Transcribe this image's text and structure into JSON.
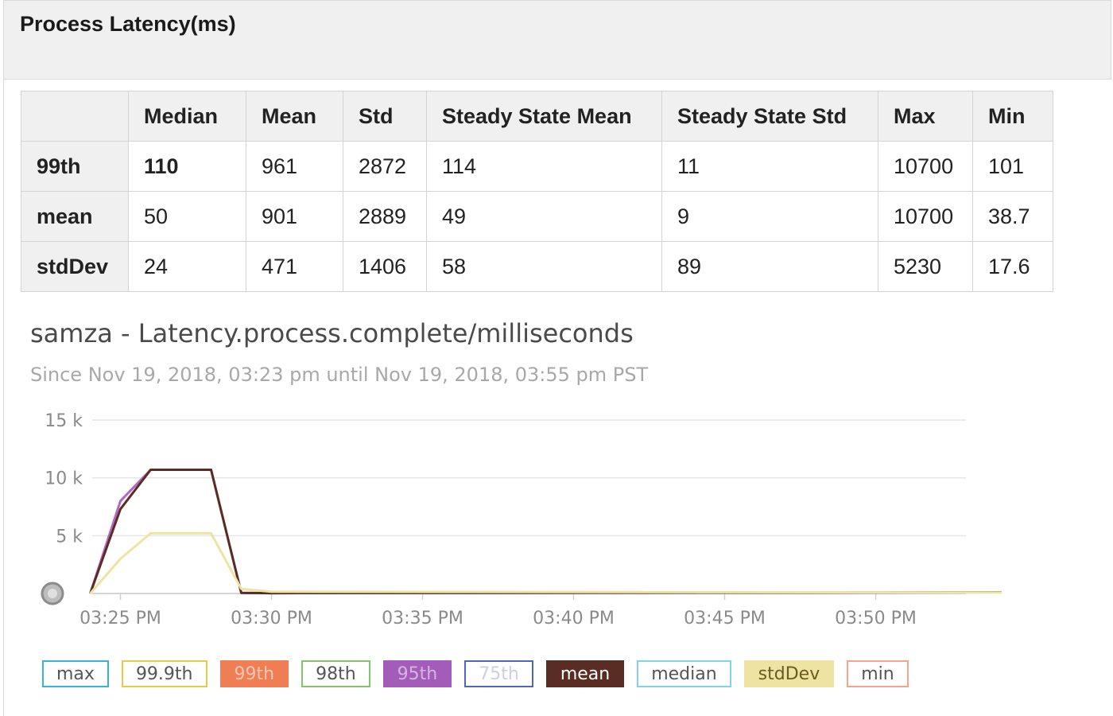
{
  "panel": {
    "title": "Process Latency(ms)"
  },
  "table": {
    "columns": [
      "",
      "Median",
      "Mean",
      "Std",
      "Steady State Mean",
      "Steady State Std",
      "Max",
      "Min"
    ],
    "rows": [
      {
        "label": "99th",
        "values": [
          "110",
          "961",
          "2872",
          "114",
          "11",
          "10700",
          "101"
        ]
      },
      {
        "label": "mean",
        "values": [
          "50",
          "901",
          "2889",
          "49",
          "9",
          "10700",
          "38.7"
        ]
      },
      {
        "label": "stdDev",
        "values": [
          "24",
          "471",
          "1406",
          "58",
          "89",
          "5230",
          "17.6"
        ]
      }
    ]
  },
  "chart": {
    "title": "samza - Latency.process.complete/milliseconds",
    "subtitle": "Since Nov 19, 2018, 03:23 pm until Nov 19, 2018, 03:55 pm PST"
  },
  "chart_data": {
    "type": "line",
    "title": "samza - Latency.process.complete/milliseconds",
    "subtitle": "Since Nov 19, 2018, 03:23 pm until Nov 19, 2018, 03:55 pm PST",
    "xlabel": "",
    "ylabel": "",
    "ylim": [
      0,
      15000
    ],
    "yticks": [
      5000,
      10000,
      15000
    ],
    "ytick_labels": [
      "5 k",
      "10 k",
      "15 k"
    ],
    "xlim": [
      "03:23 PM",
      "03:55 PM"
    ],
    "xtick_labels": [
      "03:25 PM",
      "03:30 PM",
      "03:35 PM",
      "03:40 PM",
      "03:45 PM",
      "03:50 PM"
    ],
    "grid": true,
    "legend_position": "bottom",
    "x": [
      "03:24 PM",
      "03:25 PM",
      "03:26 PM",
      "03:27 PM",
      "03:28 PM",
      "03:29 PM",
      "03:30 PM",
      "03:55 PM"
    ],
    "series": [
      {
        "name": "95th",
        "color": "#b167c4",
        "values": [
          0,
          8000,
          10700,
          10700,
          10700,
          50,
          30,
          100
        ]
      },
      {
        "name": "mean",
        "color": "#5a2d24",
        "values": [
          0,
          7300,
          10700,
          10700,
          10700,
          50,
          30,
          100
        ]
      },
      {
        "name": "stdDev",
        "color": "#efe3a3",
        "values": [
          0,
          3000,
          5200,
          5200,
          5200,
          400,
          150,
          80
        ]
      }
    ],
    "legend": [
      {
        "name": "max",
        "color": "#38b3d8",
        "fill": false
      },
      {
        "name": "99.9th",
        "color": "#e8c948",
        "fill": false
      },
      {
        "name": "99th",
        "color": "#f07e55",
        "fill": true
      },
      {
        "name": "98th",
        "color": "#86c46a",
        "fill": false
      },
      {
        "name": "95th",
        "color": "#a35cb8",
        "fill": true
      },
      {
        "name": "75th",
        "color": "#4f67b8",
        "fill": false
      },
      {
        "name": "mean",
        "color": "#5a2d24",
        "fill": true
      },
      {
        "name": "median",
        "color": "#7fd3ec",
        "fill": false
      },
      {
        "name": "stdDev",
        "color": "#efe3a3",
        "fill": true
      },
      {
        "name": "min",
        "color": "#f5a48e",
        "fill": false
      }
    ]
  }
}
